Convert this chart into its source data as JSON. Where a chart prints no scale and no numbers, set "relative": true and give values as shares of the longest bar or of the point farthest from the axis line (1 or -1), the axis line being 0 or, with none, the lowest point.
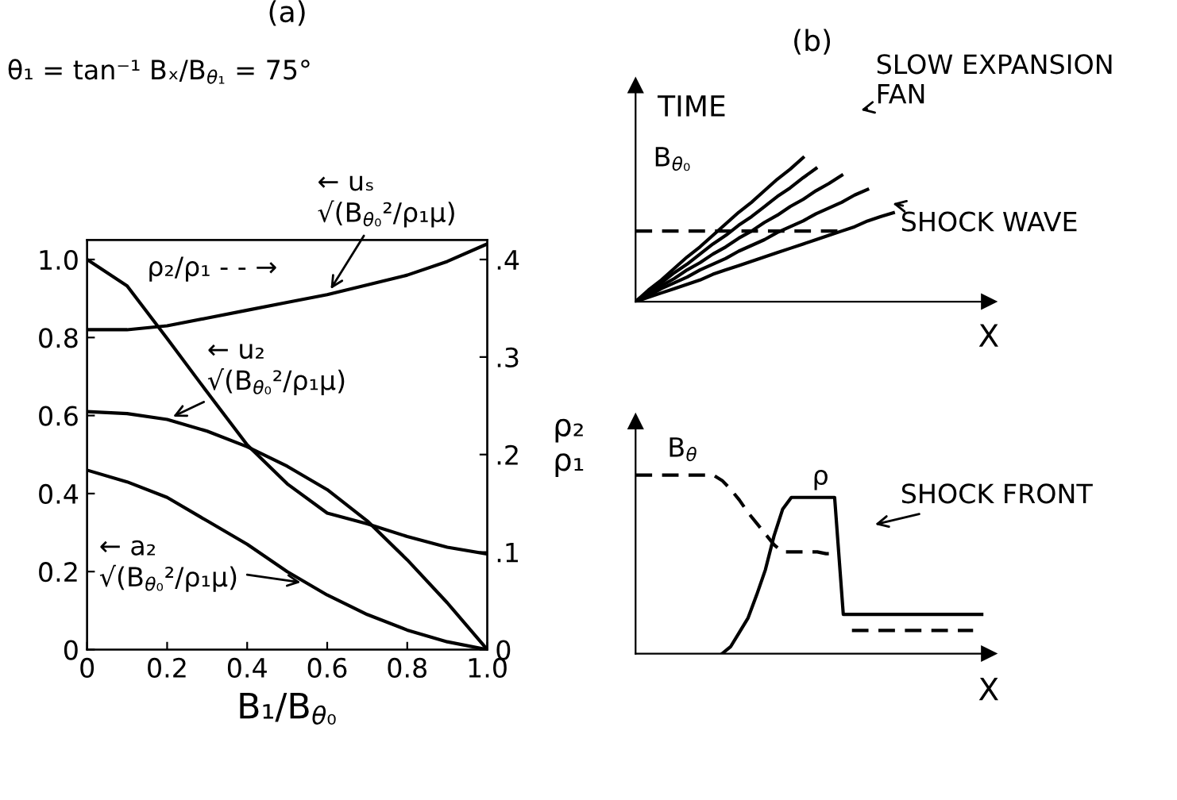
{
  "chart_data": [
    {
      "type": "line",
      "title": "(a)",
      "xlabel": "B₁/B$_{θ₀}$",
      "y2label": "ρ₂\nρ₁",
      "xlim": [
        0,
        1
      ],
      "xticks": [
        0,
        0.2,
        0.4,
        0.6,
        0.8,
        {
          "value": 1,
          "label": "1.0"
        }
      ],
      "ylim": [
        0,
        1.05
      ],
      "yticks": [
        0,
        0.2,
        0.4,
        0.6,
        0.8,
        {
          "value": 1,
          "label": "1.0"
        }
      ],
      "y2lim": [
        0,
        0.42
      ],
      "y2ticks": [
        0,
        {
          "value": 0.1,
          "label": ".1"
        },
        {
          "value": 0.2,
          "label": ".2"
        },
        {
          "value": 0.3,
          "label": ".3"
        },
        {
          "value": 0.4,
          "label": ".4"
        }
      ],
      "x": [
        0,
        0.1,
        0.2,
        0.3,
        0.4,
        0.5,
        0.6,
        0.7,
        0.8,
        0.9,
        1.0
      ],
      "series": [
        {
          "color": "#000000",
          "values": [
            0.82,
            0.82,
            0.83,
            0.85,
            0.87,
            0.89,
            0.91,
            0.935,
            0.96,
            0.995,
            1.04
          ]
        },
        {
          "color": "#000000",
          "values": [
            0.61,
            0.605,
            0.59,
            0.56,
            0.52,
            0.47,
            0.41,
            0.33,
            0.23,
            0.12,
            0
          ]
        },
        {
          "color": "#000000",
          "values": [
            0.46,
            0.43,
            0.39,
            0.33,
            0.27,
            0.2,
            0.14,
            0.09,
            0.05,
            0.02,
            0
          ]
        },
        {
          "color": "#000000",
          "axis": "y2",
          "values": [
            0.4,
            0.373,
            0.319,
            0.264,
            0.21,
            0.17,
            0.14,
            0.129,
            0.116,
            0.105,
            0.098
          ]
        }
      ],
      "annotations": [
        "θ₁ = tan⁻¹ Bₓ/B$_{θ₁}$ = 75°",
        {
          "text": "← uₛ\n√(B$_{θ₀}$²/ρ₁μ)",
          "x": 0.6,
          "y": 0.91
        },
        "ρ₂/ρ₁ - - →",
        {
          "text": "← u₂\n√(B$_{θ₀}$²/ρ₁μ)",
          "x": 0.2,
          "y": 0.59
        },
        {
          "text": "← a₂\n√(B$_{θ₀}$²/ρ₁μ)",
          "x": 0.55,
          "y": 0.17
        }
      ],
      "grid": false,
      "legend": false
    },
    {
      "type": "line",
      "title": "(b)",
      "xlabel": "X",
      "ylabel": "TIME",
      "relative": true,
      "categories": [
        null,
        null,
        null,
        null,
        null,
        null,
        null,
        null,
        null,
        null,
        null,
        null,
        null,
        null,
        null,
        null,
        null,
        null,
        null,
        null,
        null
      ],
      "series": [
        {
          "color": "#000000",
          "values": [
            0,
            0.08,
            0.15,
            0.23,
            0.31,
            0.38,
            0.46,
            0.54,
            0.62,
            0.69,
            0.77,
            0.85,
            0.92,
            1,
            null,
            null,
            null,
            null,
            null,
            null,
            null
          ]
        },
        {
          "color": "#000000",
          "values": [
            0,
            0.07,
            0.13,
            0.2,
            0.26,
            0.33,
            0.4,
            0.46,
            0.53,
            0.59,
            0.66,
            0.73,
            0.79,
            0.86,
            0.925,
            null,
            null,
            null,
            null,
            null,
            null
          ]
        },
        {
          "color": "#000000",
          "values": [
            0,
            0.05,
            0.11,
            0.16,
            0.22,
            0.27,
            0.33,
            0.38,
            0.44,
            0.49,
            0.55,
            0.6,
            0.66,
            0.71,
            0.77,
            0.82,
            0.877,
            null,
            null,
            null,
            null
          ]
        },
        {
          "color": "#000000",
          "values": [
            0,
            0.04,
            0.09,
            0.13,
            0.17,
            0.22,
            0.26,
            0.3,
            0.35,
            0.39,
            0.43,
            0.48,
            0.52,
            0.56,
            0.61,
            0.65,
            0.69,
            0.74,
            0.779,
            null,
            null
          ]
        },
        {
          "color": "#000000",
          "values": [
            0,
            0.03,
            0.06,
            0.09,
            0.12,
            0.15,
            0.19,
            0.22,
            0.25,
            0.28,
            0.31,
            0.34,
            0.37,
            0.4,
            0.43,
            0.46,
            0.49,
            0.52,
            0.56,
            0.59,
            0.617
          ]
        },
        {
          "color": "#000000",
          "line_style": "dashed",
          "values": [
            0.49,
            0.49,
            0.49,
            0.49,
            0.49,
            0.49,
            0.49,
            0.49,
            0.49,
            0.49,
            0.49,
            0.49,
            0.49,
            0.49,
            0.49,
            0.49,
            0.49,
            null,
            null,
            null,
            null
          ]
        }
      ],
      "annotations": [
        "B$_{θ₀}$",
        "SLOW EXPANSION\nFAN",
        "SHOCK WAVE"
      ],
      "grid": false,
      "legend": false
    },
    {
      "type": "line",
      "xlabel": "X",
      "relative": true,
      "categories": [
        null,
        null,
        null,
        null,
        null,
        null,
        null,
        null,
        null,
        null,
        null,
        null,
        null,
        null,
        null,
        null,
        null,
        null,
        null,
        null,
        null,
        null,
        null,
        null,
        null,
        null,
        null,
        null,
        null,
        null,
        null,
        null,
        null,
        null,
        null,
        null,
        null,
        null,
        null,
        null,
        null
      ],
      "series": [
        {
          "color": "#000000",
          "values": [
            null,
            null,
            null,
            null,
            null,
            null,
            null,
            null,
            null,
            null,
            0,
            0.04,
            0.12,
            0.2,
            0.33,
            0.47,
            0.66,
            0.81,
            0.875,
            0.875,
            0.875,
            0.875,
            0.875,
            0.875,
            0.22,
            0.22,
            0.22,
            0.22,
            0.22,
            0.22,
            0.22,
            0.22,
            0.22,
            0.22,
            0.22,
            0.22,
            0.22,
            0.22,
            0.22,
            0.22,
            0.22
          ]
        },
        {
          "color": "#000000",
          "line_style": "dashed",
          "values": [
            1,
            1,
            1,
            1,
            1,
            1,
            1,
            1,
            1,
            1,
            0.97,
            0.92,
            0.86,
            0.79,
            0.73,
            0.67,
            0.61,
            0.57,
            0.57,
            0.57,
            0.57,
            0.57,
            0.56,
            0.56,
            null,
            0.13,
            0.13,
            0.13,
            0.13,
            0.13,
            0.13,
            0.13,
            0.13,
            0.13,
            0.13,
            0.13,
            0.13,
            0.13,
            0.13,
            0.13,
            null
          ]
        }
      ],
      "annotations": [
        "B$_{θ}$",
        "ρ",
        "SHOCK FRONT"
      ],
      "grid": false,
      "legend": false
    }
  ]
}
